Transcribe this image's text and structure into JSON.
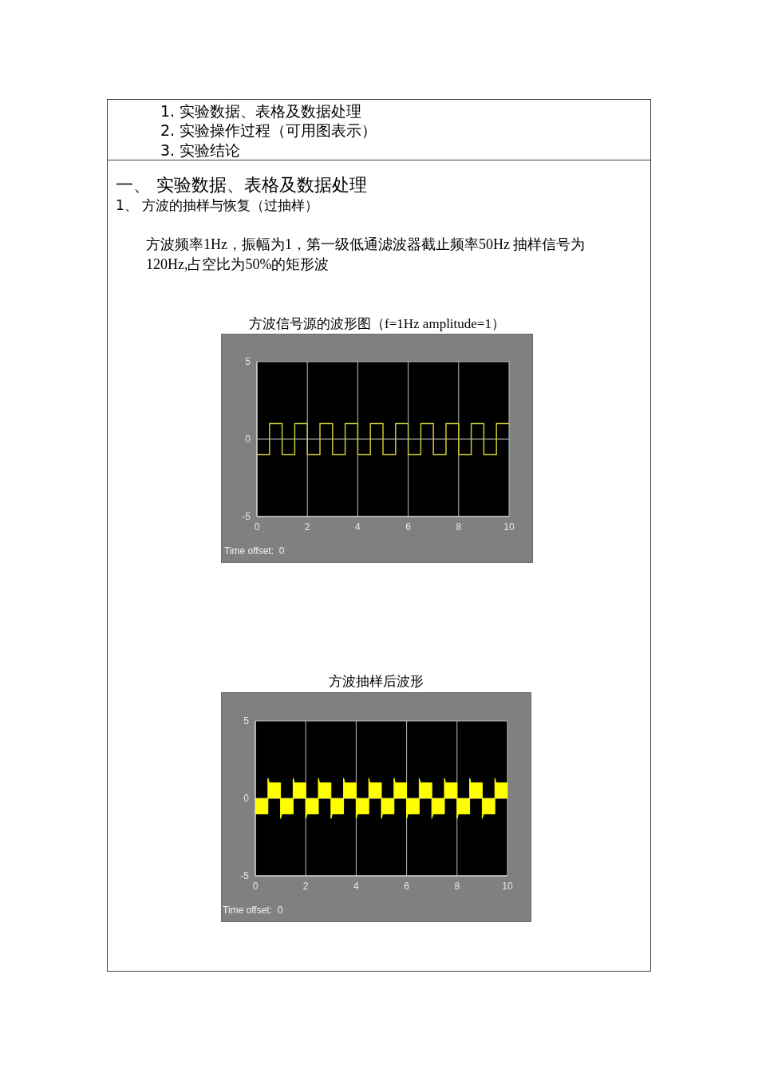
{
  "chart_data": [
    {
      "type": "other",
      "title": "一、 实验数据、表格及数据处理",
      "annotations": [
        "1. 实验数据、表格及数据处理",
        "2. 实验操作过程（可用图表示）",
        "3. 实验结论",
        "1、 方波的抽样与恢复（过抽样）",
        "方波频率1Hz，振幅为1，第一级低通滤波器截止频率50Hz 抽样信号为120Hz,占空比为50%的矩形波"
      ]
    },
    {
      "type": "step",
      "title": "方波信号源的波形图（f=1Hz amplitude=1）",
      "x": [
        0,
        0.5,
        1,
        1.5,
        2,
        2.5,
        3,
        3.5,
        4,
        4.5,
        5,
        5.5,
        6,
        6.5,
        7,
        7.5,
        8,
        8.5,
        9,
        9.5,
        10
      ],
      "series": [
        {
          "color": "#c8c832",
          "values": [
            -1,
            1,
            -1,
            1,
            -1,
            1,
            -1,
            1,
            -1,
            1,
            -1,
            1,
            -1,
            1,
            -1,
            1,
            -1,
            1,
            -1,
            1,
            1
          ]
        }
      ],
      "xlim": [
        0,
        10
      ],
      "ylim": [
        -5,
        5
      ],
      "xticks": [
        0,
        2,
        4,
        6,
        8,
        10
      ],
      "yticks": [
        -5,
        0,
        5
      ],
      "grid": true,
      "annotations": [
        "Time offset:  0"
      ]
    },
    {
      "type": "area",
      "title": "方波抽样后波形",
      "x": [
        0,
        0.5,
        0.5,
        0.55,
        1,
        1,
        1.05,
        1.5,
        1.5,
        1.55,
        2,
        2,
        2.05,
        2.5,
        2.5,
        2.55,
        3,
        3,
        3.05,
        3.5,
        3.5,
        3.55,
        4,
        4,
        4.05,
        4.5,
        4.5,
        4.55,
        5,
        5,
        5.05,
        5.5,
        5.5,
        5.55,
        6,
        6,
        6.05,
        6.5,
        6.5,
        6.55,
        7,
        7,
        7.05,
        7.5,
        7.5,
        7.55,
        8,
        8,
        8.05,
        8.5,
        8.5,
        8.55,
        9,
        9,
        9.05,
        9.5,
        9.5,
        9.55,
        10
      ],
      "series": [
        {
          "color": "#ffff00",
          "values": [
            -1,
            -1,
            1.3,
            1,
            1,
            -1.3,
            -1,
            -1,
            1.3,
            1,
            1,
            -1.3,
            -1,
            -1,
            1.3,
            1,
            1,
            -1.3,
            -1,
            -1,
            1.3,
            1,
            1,
            -1.3,
            -1,
            -1,
            1.3,
            1,
            1,
            -1.3,
            -1,
            -1,
            1.3,
            1,
            1,
            -1.3,
            -1,
            -1,
            1.3,
            1,
            1,
            -1.3,
            -1,
            -1,
            1.3,
            1,
            1,
            -1.3,
            -1,
            -1,
            1.3,
            1,
            1,
            -1.3,
            -1,
            -1,
            1.3,
            1,
            1
          ]
        }
      ],
      "xlim": [
        0,
        10
      ],
      "ylim": [
        -5,
        5
      ],
      "xticks": [
        0,
        2,
        4,
        6,
        8,
        10
      ],
      "yticks": [
        -5,
        0,
        5
      ],
      "grid": true,
      "annotations": [
        "Time offset:  0"
      ]
    }
  ]
}
